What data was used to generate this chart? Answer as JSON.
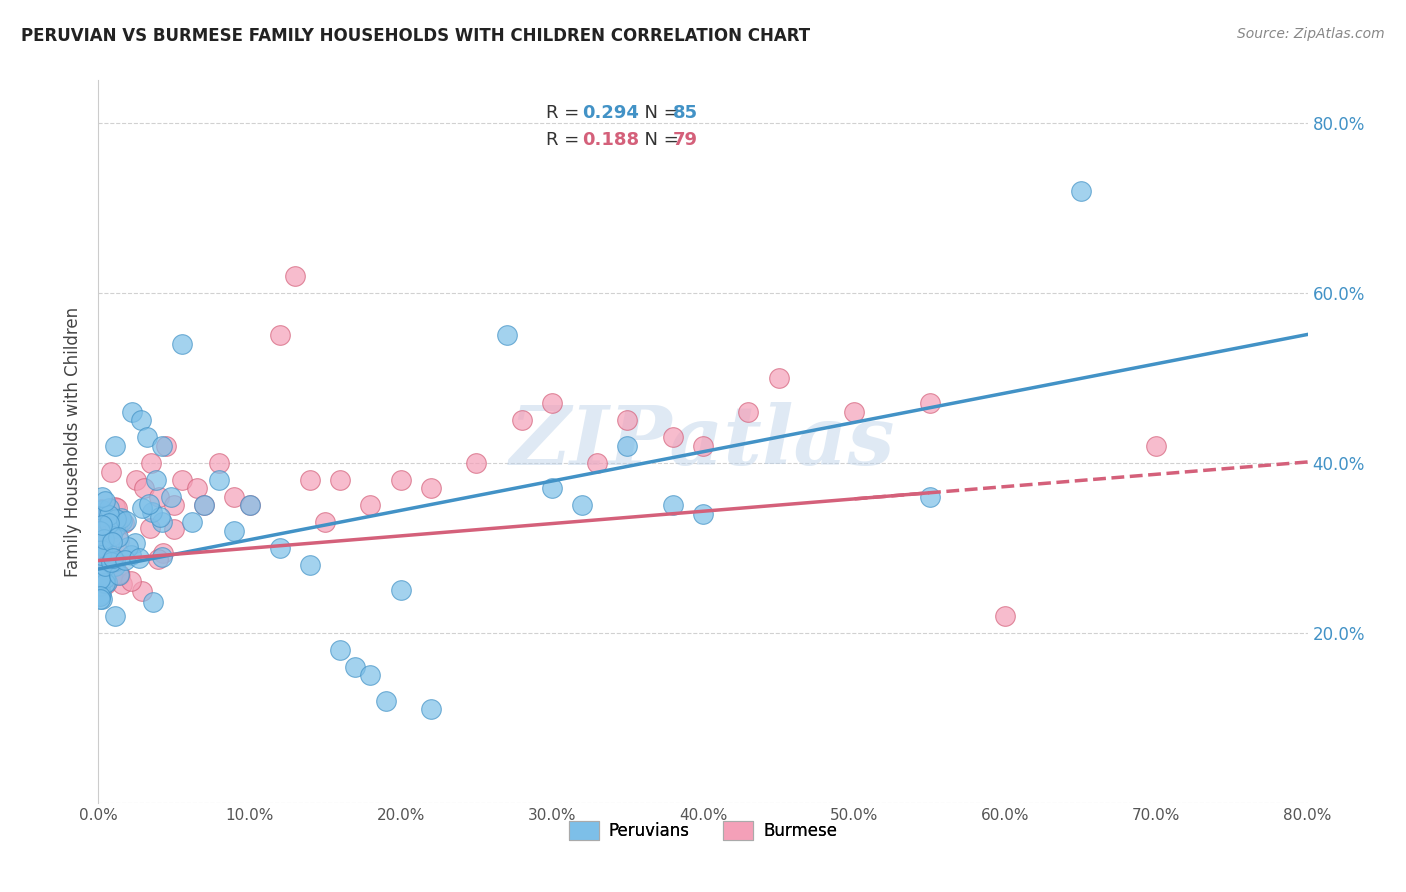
{
  "title": "PERUVIAN VS BURMESE FAMILY HOUSEHOLDS WITH CHILDREN CORRELATION CHART",
  "source": "Source: ZipAtlas.com",
  "ylabel": "Family Households with Children",
  "xlim": [
    0.0,
    0.8
  ],
  "ylim": [
    0.0,
    0.85
  ],
  "ytick_labels_right": [
    "20.0%",
    "40.0%",
    "60.0%",
    "80.0%"
  ],
  "yticks_right": [
    0.2,
    0.4,
    0.6,
    0.8
  ],
  "peruvian_color": "#7dbfe8",
  "burmese_color": "#f4a0b8",
  "peruvian_line_color": "#4292c6",
  "burmese_line_color": "#d4607a",
  "R_peruvian": 0.294,
  "N_peruvian": 85,
  "R_burmese": 0.188,
  "N_burmese": 79,
  "watermark": "ZIPatlas",
  "background_color": "#ffffff",
  "grid_color": "#cccccc",
  "legend_R_color": "#4292c6",
  "legend_N_color": "#4292c6",
  "legend_text_color": "#333333",
  "source_color": "#888888",
  "ylabel_color": "#444444",
  "right_tick_color": "#4292c6"
}
